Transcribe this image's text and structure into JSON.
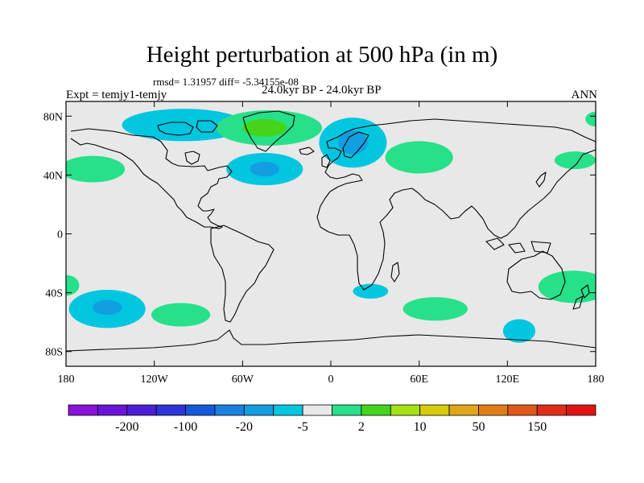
{
  "title": "Height perturbation at 500 hPa (in m)",
  "stats": "rmsd= 1.31957 diff= -5.34155e-08",
  "experiment": "Expt = temjy1-temjy",
  "period": "24.0kyr BP - 24.0kyr BP",
  "season": "ANN",
  "map": {
    "lat_ticks": [
      "80N",
      "40N",
      "0",
      "40S",
      "80S"
    ],
    "lon_ticks": [
      "180",
      "120W",
      "60W",
      "0",
      "60E",
      "120E",
      "180"
    ],
    "background_color": "#e8e8e8"
  },
  "colorbar": {
    "colors": [
      "#8a12d9",
      "#6a14d9",
      "#4c1ed8",
      "#2d34d9",
      "#1458dc",
      "#1a80e0",
      "#129ee0",
      "#00c6e0",
      "#e8e8e8",
      "#27e08a",
      "#44d51a",
      "#a6e016",
      "#d6cc0c",
      "#e0a61a",
      "#e07d1a",
      "#e0581a",
      "#e02d1a",
      "#e01414"
    ],
    "labels": [
      {
        "text": "-200",
        "after_box": 1
      },
      {
        "text": "-100",
        "after_box": 3
      },
      {
        "text": "-20",
        "after_box": 5
      },
      {
        "text": "-5",
        "after_box": 7
      },
      {
        "text": "2",
        "after_box": 9
      },
      {
        "text": "10",
        "after_box": 11
      },
      {
        "text": "50",
        "after_box": 13
      },
      {
        "text": "150",
        "after_box": 15
      }
    ]
  },
  "features": [
    {
      "name": "arctic-canada-negative",
      "color": "#00c6e0",
      "lon": -100,
      "lat": 74,
      "rlon": 42,
      "rlat": 11
    },
    {
      "name": "greenland-positive",
      "color": "#27e08a",
      "lon": -42,
      "lat": 72,
      "rlon": 36,
      "rlat": 12
    },
    {
      "name": "greenland-positive-core",
      "color": "#44d51a",
      "lon": -45,
      "lat": 72,
      "rlon": 15,
      "rlat": 6
    },
    {
      "name": "north-atlantic-negative",
      "color": "#00c6e0",
      "lon": -45,
      "lat": 44,
      "rlon": 26,
      "rlat": 11
    },
    {
      "name": "north-atlantic-negative-core",
      "color": "#129ee0",
      "lon": -45,
      "lat": 44,
      "rlon": 10,
      "rlat": 5
    },
    {
      "name": "north-pacific-positive",
      "color": "#27e08a",
      "lon": -162,
      "lat": 44,
      "rlon": 22,
      "rlat": 9
    },
    {
      "name": "arctic-edge-positive",
      "color": "#27e08a",
      "lon": 180,
      "lat": 78,
      "rlon": 7,
      "rlat": 5
    },
    {
      "name": "scandinavia-negative",
      "color": "#00c6e0",
      "lon": 15,
      "lat": 62,
      "rlon": 23,
      "rlat": 17
    },
    {
      "name": "scandinavia-negative-core",
      "color": "#129ee0",
      "lon": 15,
      "lat": 62,
      "rlon": 10,
      "rlat": 8
    },
    {
      "name": "siberia-positive",
      "color": "#27e08a",
      "lon": 60,
      "lat": 52,
      "rlon": 23,
      "rlat": 11
    },
    {
      "name": "kamchatka-positive",
      "color": "#27e08a",
      "lon": 166,
      "lat": 50,
      "rlon": 14,
      "rlat": 6
    },
    {
      "name": "south-pacific-negative",
      "color": "#00c6e0",
      "lon": -152,
      "lat": -51,
      "rlon": 26,
      "rlat": 13
    },
    {
      "name": "south-pacific-negative-core",
      "color": "#129ee0",
      "lon": -152,
      "lat": -50,
      "rlon": 10,
      "rlat": 5
    },
    {
      "name": "southeast-pacific-positive",
      "color": "#27e08a",
      "lon": -102,
      "lat": -55,
      "rlon": 20,
      "rlat": 8
    },
    {
      "name": "west-edge-positive",
      "color": "#27e08a",
      "lon": -180,
      "lat": -35,
      "rlon": 9,
      "rlat": 7
    },
    {
      "name": "south-atlantic-negative",
      "color": "#00c6e0",
      "lon": 27,
      "lat": -39,
      "rlon": 12,
      "rlat": 5
    },
    {
      "name": "southern-ocean-positive",
      "color": "#27e08a",
      "lon": 71,
      "lat": -51,
      "rlon": 22,
      "rlat": 8
    },
    {
      "name": "australia-east-positive",
      "color": "#27e08a",
      "lon": 165,
      "lat": -36,
      "rlon": 24,
      "rlat": 11
    },
    {
      "name": "antarctic-negative",
      "color": "#00c6e0",
      "lon": 128,
      "lat": -66,
      "rlon": 11,
      "rlat": 8
    }
  ]
}
